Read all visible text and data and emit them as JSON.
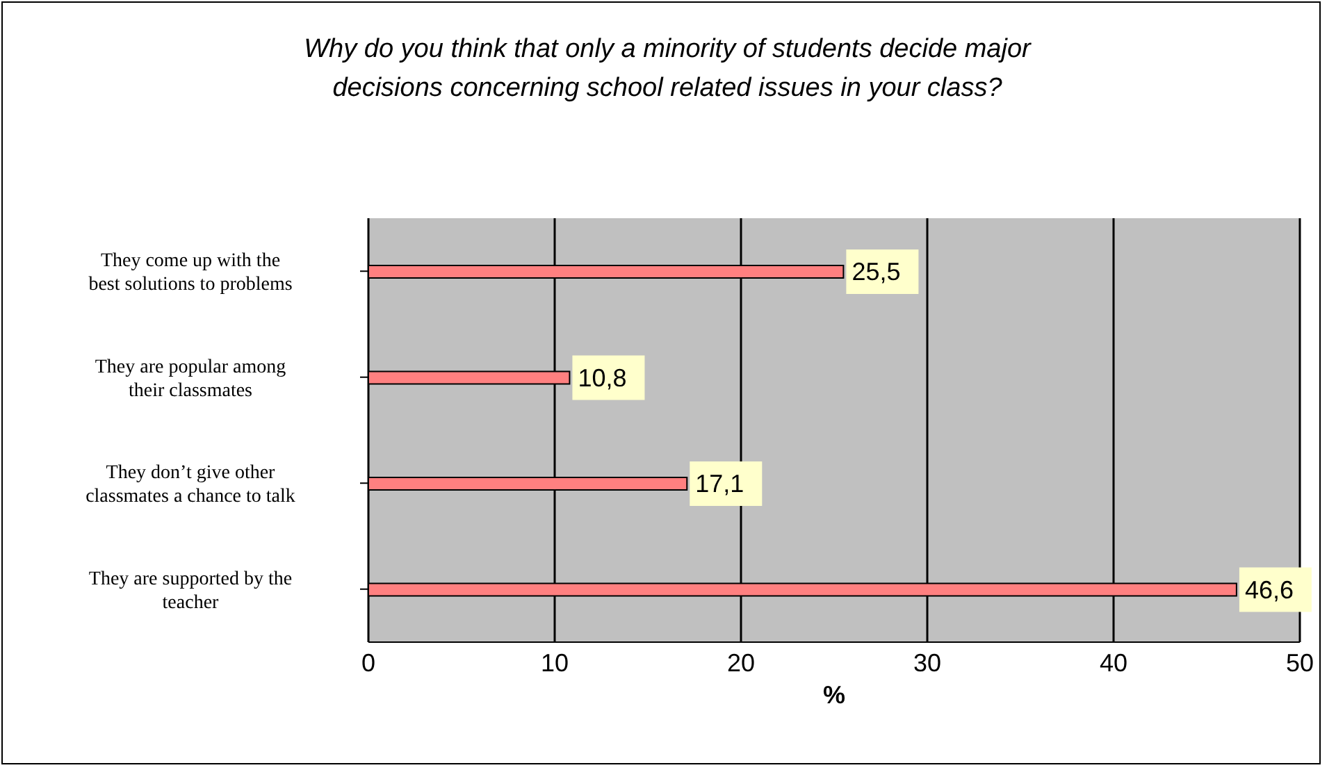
{
  "chart_data": {
    "type": "bar",
    "orientation": "horizontal",
    "title": "Why do you think that only a minority of students decide major decisions concerning school related issues in your class?",
    "xlabel": "%",
    "categories": [
      "They come up with the best solutions to problems",
      "They are popular among their classmates",
      "They don’t give other classmates a chance to talk",
      "They are supported by the teacher"
    ],
    "values": [
      25.5,
      10.8,
      17.1,
      46.6
    ],
    "value_labels": [
      "25,5",
      "10,8",
      "17,1",
      "46,6"
    ],
    "color": "#ff8080",
    "xlim": [
      0,
      50
    ],
    "xticks": [
      0,
      10,
      20,
      30,
      40,
      50
    ],
    "grid": "x"
  }
}
